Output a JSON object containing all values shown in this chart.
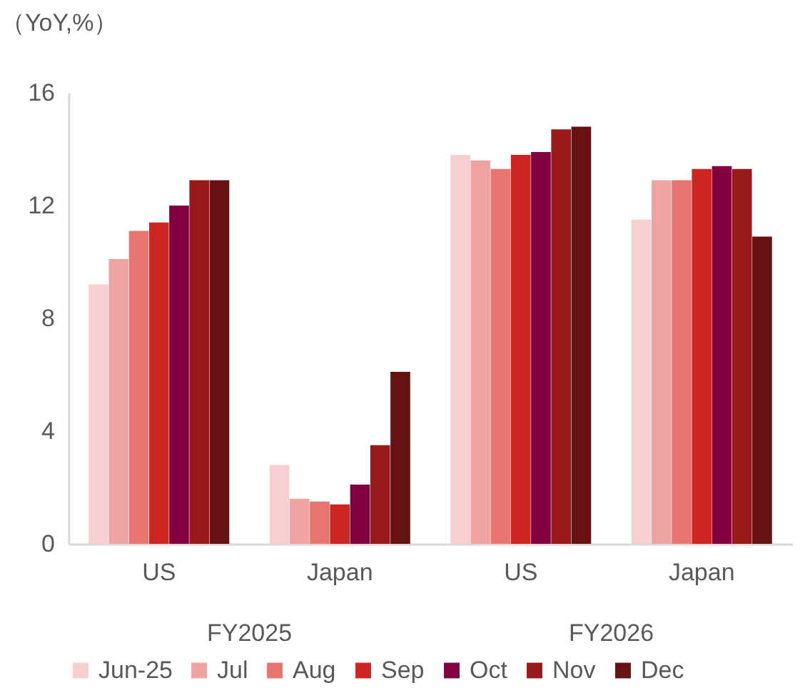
{
  "chart_data": {
    "type": "bar",
    "ylabel": "（YoY,%）",
    "categories": [
      "US",
      "Japan",
      "US",
      "Japan"
    ],
    "annotations": [
      "FY2025",
      "FY2026"
    ],
    "series": [
      {
        "name": "Jun-25",
        "color": "#f6d0d0",
        "values": [
          9.2,
          2.8,
          13.8,
          11.5
        ]
      },
      {
        "name": "Jul",
        "color": "#f0a3a3",
        "values": [
          10.1,
          1.6,
          13.6,
          12.9
        ]
      },
      {
        "name": "Aug",
        "color": "#e87570",
        "values": [
          11.1,
          1.5,
          13.3,
          12.9
        ]
      },
      {
        "name": "Sep",
        "color": "#cc2522",
        "values": [
          11.4,
          1.4,
          13.8,
          13.3
        ]
      },
      {
        "name": "Oct",
        "color": "#800040",
        "values": [
          12.0,
          2.1,
          13.9,
          13.4
        ]
      },
      {
        "name": "Nov",
        "color": "#981a1a",
        "values": [
          12.9,
          3.5,
          14.7,
          13.3
        ]
      },
      {
        "name": "Dec",
        "color": "#671212",
        "values": [
          12.9,
          6.1,
          14.8,
          10.9
        ]
      }
    ],
    "ylim": [
      0,
      16
    ],
    "yticks": [
      0,
      4,
      8,
      12,
      16
    ],
    "legend": "bottom"
  }
}
